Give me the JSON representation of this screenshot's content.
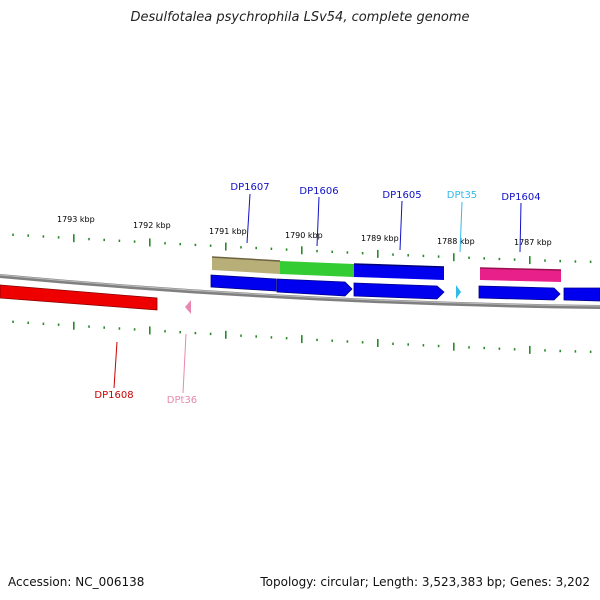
{
  "title": "Desulfotalea psychrophila LSv54, complete genome",
  "footer": {
    "accession": "Accession: NC_006138",
    "summary": "Topology: circular; Length: 3,523,383 bp; Genes: 3,202"
  },
  "kbp_labels": [
    "1793 kbp",
    "1792 kbp",
    "1791 kbp",
    "1790 kbp",
    "1789 kbp",
    "1788 kbp",
    "1787 kbp"
  ],
  "genes": [
    {
      "name": "DP1607",
      "color": "#1010c8"
    },
    {
      "name": "DP1606",
      "color": "#1010c8"
    },
    {
      "name": "DP1605",
      "color": "#1010c8"
    },
    {
      "name": "DPt35",
      "color": "#33bbe8"
    },
    {
      "name": "DP1604",
      "color": "#1010c8"
    },
    {
      "name": "DP1608",
      "color": "#cc0000"
    },
    {
      "name": "DPt36",
      "color": "#e888b0"
    }
  ],
  "colors": {
    "backbone": "#808080",
    "tick": "#2a8a2a",
    "cds_forward": "#0000ee",
    "cds_reverse": "#ee0000",
    "trna_forward": "#33bbe8",
    "trna_reverse": "#e888b0",
    "feature_khaki": "#b8ae78",
    "feature_green": "#33cc33",
    "feature_magenta": "#e8208a"
  }
}
